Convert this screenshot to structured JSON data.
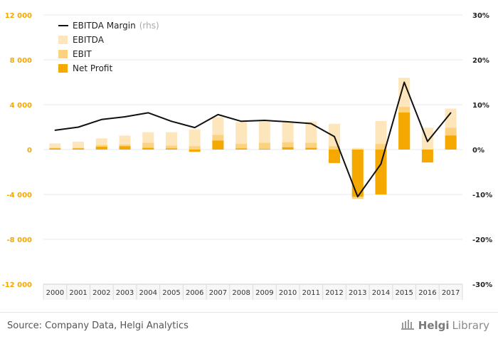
{
  "source": "Source: Company Data, Helgi Analytics",
  "logo": {
    "brand": "Helgi",
    "suffix": "Library"
  },
  "colors": {
    "ebitda": "#fde6bb",
    "ebit": "#fdd27f",
    "net_profit": "#f5a800",
    "margin_line": "#111111",
    "left_axis_text": "#f5a800",
    "grid": "#e9e9e9"
  },
  "chart_data": {
    "type": "bar",
    "categories": [
      "2000",
      "2001",
      "2002",
      "2003",
      "2004",
      "2005",
      "2006",
      "2007",
      "2008",
      "2009",
      "2010",
      "2011",
      "2012",
      "2013",
      "2014",
      "2015",
      "2016",
      "2017"
    ],
    "series": [
      {
        "name": "EBITDA",
        "type": "bar",
        "axis": "left",
        "values": [
          550,
          700,
          1000,
          1250,
          1550,
          1550,
          1800,
          2900,
          2450,
          2500,
          2450,
          2500,
          2300,
          150,
          2550,
          6400,
          1950,
          3650
        ]
      },
      {
        "name": "EBIT",
        "type": "bar",
        "axis": "left",
        "values": [
          150,
          150,
          400,
          450,
          600,
          350,
          300,
          1300,
          500,
          600,
          650,
          600,
          300,
          -4400,
          500,
          3800,
          -50,
          1950
        ]
      },
      {
        "name": "Net Profit",
        "type": "bar",
        "axis": "left",
        "values": [
          100,
          100,
          250,
          300,
          150,
          100,
          -200,
          800,
          100,
          50,
          200,
          150,
          -1200,
          -4200,
          -4000,
          3300,
          -1150,
          1250
        ]
      },
      {
        "name": "EBITDA Margin",
        "note": "(rhs)",
        "type": "line",
        "axis": "right",
        "values": [
          4.3,
          5.0,
          6.7,
          7.3,
          8.2,
          6.3,
          4.9,
          7.8,
          6.3,
          6.5,
          6.2,
          5.8,
          2.9,
          -10.5,
          -3.2,
          15.0,
          1.8,
          8.2
        ]
      }
    ],
    "left_axis": {
      "min": -12000,
      "max": 12000,
      "ticks": [
        "12 000",
        "8 000",
        "4 000",
        "0",
        "-4 000",
        "-8 000",
        "-12 000"
      ],
      "tick_values": [
        12000,
        8000,
        4000,
        0,
        -4000,
        -8000,
        -12000
      ]
    },
    "right_axis": {
      "min": -30,
      "max": 30,
      "unit": "%",
      "ticks": [
        "30%",
        "20%",
        "10%",
        "0%",
        "-10%",
        "-20%",
        "-30%"
      ],
      "tick_values": [
        30,
        20,
        10,
        0,
        -10,
        -20,
        -30
      ]
    },
    "legend_position": "top-left",
    "grid": true
  }
}
